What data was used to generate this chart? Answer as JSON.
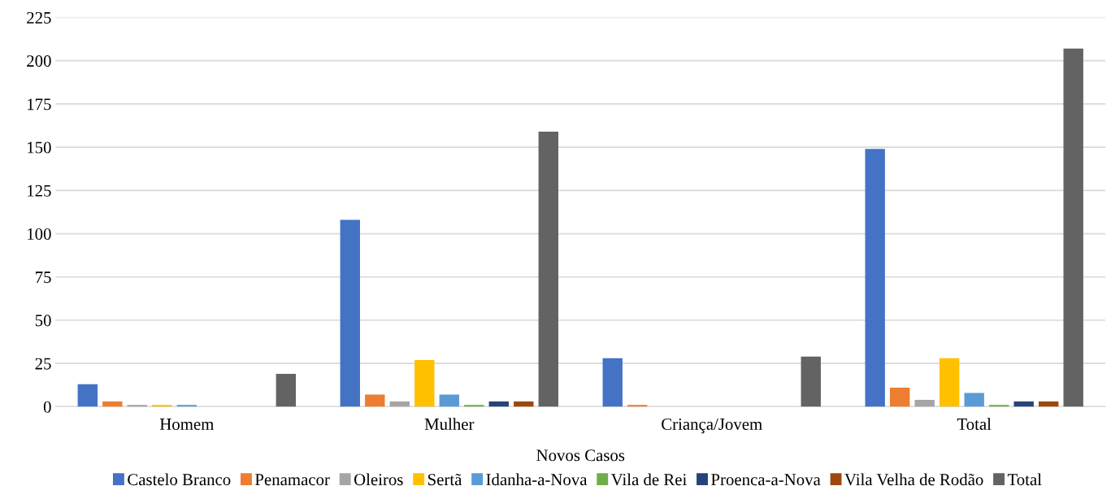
{
  "chart_data": {
    "type": "bar",
    "xlabel": "Novos Casos",
    "categories": [
      "Homem",
      "Mulher",
      "Criança/Jovem",
      "Total"
    ],
    "series": [
      {
        "name": "Castelo Branco",
        "color": "#4472c4",
        "values": [
          13,
          108,
          28,
          149
        ]
      },
      {
        "name": "Penamacor",
        "color": "#ed7d31",
        "values": [
          3,
          7,
          1,
          11
        ]
      },
      {
        "name": "Oleiros",
        "color": "#a5a5a5",
        "values": [
          1,
          3,
          0,
          4
        ]
      },
      {
        "name": "Sertã",
        "color": "#ffc000",
        "values": [
          1,
          27,
          0,
          28
        ]
      },
      {
        "name": "Idanha-a-Nova",
        "color": "#5b9bd5",
        "values": [
          1,
          7,
          0,
          8
        ]
      },
      {
        "name": "Vila de Rei",
        "color": "#70ad47",
        "values": [
          0,
          1,
          0,
          1
        ]
      },
      {
        "name": "Proenca-a-Nova",
        "color": "#264478",
        "values": [
          0,
          3,
          0,
          3
        ]
      },
      {
        "name": "Vila Velha de Rodão",
        "color": "#9e480e",
        "values": [
          0,
          3,
          0,
          3
        ]
      },
      {
        "name": "Total",
        "color": "#636363",
        "values": [
          19,
          159,
          29,
          207
        ]
      }
    ],
    "ylim": [
      0,
      225
    ],
    "yticks": [
      0,
      25,
      50,
      75,
      100,
      125,
      150,
      175,
      200,
      225
    ],
    "grid": "y",
    "legend": "bottom"
  }
}
